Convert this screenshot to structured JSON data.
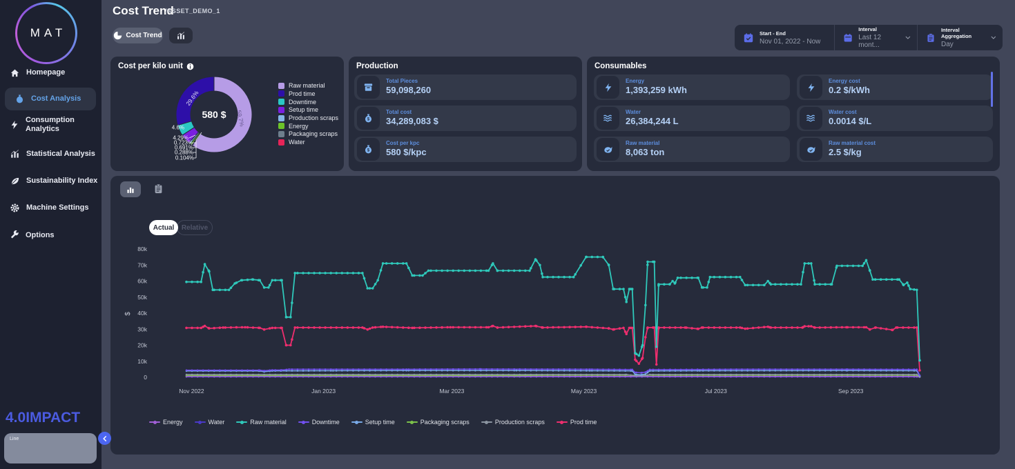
{
  "sidebar": {
    "logo_text": "MAT",
    "items": [
      {
        "label": "Homepage",
        "icon": "home"
      },
      {
        "label": "Cost Analysis",
        "icon": "money-bag",
        "active": true
      },
      {
        "label": "Consumption Analytics",
        "icon": "bolt"
      },
      {
        "label": "Statistical Analysis",
        "icon": "bar-chart"
      },
      {
        "label": "Sustainability Index",
        "icon": "leaf"
      },
      {
        "label": "Machine Settings",
        "icon": "gear"
      },
      {
        "label": "Options",
        "icon": "wrench"
      }
    ],
    "footer_logo": "4.0IMPACT",
    "line_panel_label": "Line"
  },
  "header": {
    "title": "Cost Trend",
    "breadcrumb": "/ASSET_DEMO_1",
    "pie_button_label": "Cost Trend",
    "controls": [
      {
        "label": "Start - End",
        "value": "Nov 01, 2022 - Now",
        "icon": "calendar-check-icon"
      },
      {
        "label": "Interval",
        "value": "Last 12 mont...",
        "icon": "calendar-icon"
      },
      {
        "label": "Interval Aggregation",
        "value": "Day",
        "icon": "clipboard-icon"
      }
    ]
  },
  "cost_per_kilo": {
    "title": "Cost per kilo unit",
    "center_value": "580 $"
  },
  "production": {
    "title": "Production",
    "stats": [
      {
        "label": "Total Pieces",
        "value": "59,098,260",
        "icon": "box-icon"
      },
      {
        "label": "Total cost",
        "value": "34,289,083 $",
        "icon": "money-bag-icon"
      },
      {
        "label": "Cost per kpc",
        "value": "580 $/kpc",
        "icon": "money-bag-icon"
      }
    ]
  },
  "consumables": {
    "title": "Consumables",
    "stats_left": [
      {
        "label": "Energy",
        "value": "1,393,259 kWh",
        "icon": "bolt-icon"
      },
      {
        "label": "Water",
        "value": "26,384,244 L",
        "icon": "waves-icon"
      },
      {
        "label": "Raw material",
        "value": "8,063 ton",
        "icon": "material-icon"
      }
    ],
    "stats_right": [
      {
        "label": "Energy cost",
        "value": "0.2 $/kWh",
        "icon": "bolt-icon"
      },
      {
        "label": "Water cost",
        "value": "0.0014 $/L",
        "icon": "waves-icon"
      },
      {
        "label": "Raw material cost",
        "value": "2.5 $/kg",
        "icon": "material-icon"
      }
    ]
  },
  "trend": {
    "tabs": [
      {
        "label": "Actual",
        "active": true
      },
      {
        "label": "Relative",
        "active": false
      }
    ]
  },
  "chart_data": [
    {
      "type": "pie",
      "title": "Cost per kilo unit",
      "center_label": "580 $",
      "slices": [
        {
          "name": "Raw material",
          "pct": 59.7,
          "label": "59.7%",
          "color": "#b69ce6"
        },
        {
          "name": "Water",
          "pct": 0.104,
          "label": "0.104%",
          "color": "#e62458"
        },
        {
          "name": "Packaging scraps",
          "pct": 0.288,
          "label": "0.288%",
          "color": "#6e7f8d"
        },
        {
          "name": "Energy",
          "pct": 0.691,
          "label": "0.691%",
          "color": "#6cc229"
        },
        {
          "name": "Production scraps",
          "pct": 0.723,
          "label": "0.723%",
          "color": "#85b6e8"
        },
        {
          "name": "Setup time",
          "pct": 4.29,
          "label": "4.29%",
          "color": "#7a1fe0"
        },
        {
          "name": "Downtime",
          "pct": 4.6,
          "label": "4.6%",
          "color": "#2bc8c4"
        },
        {
          "name": "Prod time",
          "pct": 29.6,
          "label": "29.6%",
          "color": "#2d0fa8"
        }
      ],
      "legend": [
        {
          "name": "Raw material",
          "color": "#b69ce6"
        },
        {
          "name": "Prod time",
          "color": "#2d0fa8"
        },
        {
          "name": "Downtime",
          "color": "#2bc8c4"
        },
        {
          "name": "Setup time",
          "color": "#7a1fe0"
        },
        {
          "name": "Production scraps",
          "color": "#85b6e8"
        },
        {
          "name": "Energy",
          "color": "#6cc229"
        },
        {
          "name": "Packaging scraps",
          "color": "#6e7f8d"
        },
        {
          "name": "Water",
          "color": "#e62458"
        }
      ],
      "legend_position": "right"
    },
    {
      "type": "line",
      "ylabel": "$",
      "y_unit": "thousands of $",
      "ylim": [
        0,
        80
      ],
      "yticks": [
        "0",
        "10k",
        "20k",
        "30k",
        "40k",
        "50k",
        "60k",
        "70k",
        "80k"
      ],
      "xticks": [
        {
          "label": "Nov 2022",
          "f": 0.007
        },
        {
          "label": "Jan 2023",
          "f": 0.187
        },
        {
          "label": "Mar 2023",
          "f": 0.362
        },
        {
          "label": "May 2023",
          "f": 0.542
        },
        {
          "label": "Jul 2023",
          "f": 0.722
        },
        {
          "label": "Sep 2023",
          "f": 0.906
        }
      ],
      "grid": false,
      "legend_position": "bottom",
      "legend": [
        {
          "name": "Energy",
          "color": "#a15fd6"
        },
        {
          "name": "Water",
          "color": "#4a39c8"
        },
        {
          "name": "Raw material",
          "color": "#2fc9bb"
        },
        {
          "name": "Downtime",
          "color": "#7250f0"
        },
        {
          "name": "Setup time",
          "color": "#79aae8"
        },
        {
          "name": "Packaging scraps",
          "color": "#7cc24a"
        },
        {
          "name": "Production scraps",
          "color": "#8b95a1"
        },
        {
          "name": "Prod time",
          "color": "#ee2e6e"
        }
      ],
      "series": [
        {
          "name": "Water",
          "color": "#4a39c8",
          "points": [
            [
              0,
              0.25
            ],
            [
              0.996,
              0.25
            ],
            [
              1,
              0.1
            ]
          ]
        },
        {
          "name": "Energy",
          "color": "#a15fd6",
          "points": [
            [
              0,
              0.5
            ],
            [
              0.996,
              0.5
            ],
            [
              1,
              0.2
            ]
          ]
        },
        {
          "name": "Packaging scraps",
          "color": "#7cc24a",
          "points": [
            [
              0,
              1.1
            ],
            [
              0.45,
              1.1
            ],
            [
              0.5,
              1.3
            ],
            [
              0.996,
              1.3
            ],
            [
              1,
              0.4
            ]
          ]
        },
        {
          "name": "Production scraps",
          "color": "#8b95a1",
          "points": [
            [
              0,
              1.7
            ],
            [
              0.6,
              1.7
            ],
            [
              0.612,
              1
            ],
            [
              0.626,
              1
            ],
            [
              0.632,
              1.7
            ],
            [
              0.996,
              1.7
            ],
            [
              1,
              0.5
            ]
          ]
        },
        {
          "name": "Setup time",
          "color": "#79aae8",
          "points": [
            [
              0,
              3.9
            ],
            [
              0.1,
              3.9
            ],
            [
              0.106,
              3.5
            ],
            [
              0.117,
              4
            ],
            [
              0.2,
              4.1
            ],
            [
              0.3,
              4.2
            ],
            [
              0.45,
              4.2
            ],
            [
              0.55,
              4.1
            ],
            [
              0.608,
              4
            ],
            [
              0.612,
              1.8
            ],
            [
              0.62,
              1.5
            ],
            [
              0.626,
              2
            ],
            [
              0.632,
              4
            ],
            [
              0.7,
              4.1
            ],
            [
              0.9,
              4.2
            ],
            [
              0.996,
              4.1
            ],
            [
              1,
              0.8
            ]
          ]
        },
        {
          "name": "Downtime",
          "color": "#7250f0",
          "points": [
            [
              0,
              4.4
            ],
            [
              0.1,
              4.4
            ],
            [
              0.106,
              4.1
            ],
            [
              0.117,
              4.5
            ],
            [
              0.13,
              4.5
            ],
            [
              0.14,
              5
            ],
            [
              0.3,
              5
            ],
            [
              0.4,
              5.1
            ],
            [
              0.55,
              5
            ],
            [
              0.608,
              4.8
            ],
            [
              0.612,
              3
            ],
            [
              0.62,
              2.8
            ],
            [
              0.626,
              3.2
            ],
            [
              0.632,
              4.8
            ],
            [
              0.66,
              4.8
            ],
            [
              0.75,
              5
            ],
            [
              0.9,
              5
            ],
            [
              0.996,
              4.9
            ],
            [
              1,
              1.2
            ]
          ]
        },
        {
          "name": "Prod time",
          "color": "#ee2e6e",
          "points": [
            [
              0,
              30.8
            ],
            [
              0.02,
              30.8
            ],
            [
              0.025,
              32
            ],
            [
              0.031,
              30.5
            ],
            [
              0.05,
              31
            ],
            [
              0.08,
              31.2
            ],
            [
              0.1,
              30.8
            ],
            [
              0.106,
              29.8
            ],
            [
              0.117,
              30.8
            ],
            [
              0.13,
              30.8
            ],
            [
              0.136,
              20
            ],
            [
              0.142,
              20
            ],
            [
              0.148,
              31
            ],
            [
              0.24,
              31
            ],
            [
              0.247,
              29.8
            ],
            [
              0.254,
              31
            ],
            [
              0.268,
              31.5
            ],
            [
              0.308,
              30.8
            ],
            [
              0.36,
              31.2
            ],
            [
              0.412,
              31.2
            ],
            [
              0.418,
              32
            ],
            [
              0.424,
              31
            ],
            [
              0.476,
              32
            ],
            [
              0.486,
              31
            ],
            [
              0.545,
              31.5
            ],
            [
              0.576,
              30.5
            ],
            [
              0.582,
              29.8
            ],
            [
              0.596,
              30.8
            ],
            [
              0.6,
              27
            ],
            [
              0.604,
              30.8
            ],
            [
              0.608,
              30.8
            ],
            [
              0.612,
              11
            ],
            [
              0.617,
              8.5
            ],
            [
              0.622,
              12
            ],
            [
              0.626,
              25
            ],
            [
              0.629,
              31
            ],
            [
              0.638,
              31
            ],
            [
              0.641,
              8
            ],
            [
              0.644,
              31
            ],
            [
              0.68,
              31
            ],
            [
              0.698,
              30.2
            ],
            [
              0.703,
              31
            ],
            [
              0.755,
              31
            ],
            [
              0.762,
              30.3
            ],
            [
              0.793,
              31.5
            ],
            [
              0.797,
              31
            ],
            [
              0.84,
              31
            ],
            [
              0.843,
              31.8
            ],
            [
              0.852,
              31.8
            ],
            [
              0.857,
              31
            ],
            [
              0.9,
              31.2
            ],
            [
              0.927,
              31.2
            ],
            [
              0.932,
              29.8
            ],
            [
              0.94,
              31
            ],
            [
              0.963,
              29.5
            ],
            [
              0.968,
              31
            ],
            [
              0.996,
              31
            ],
            [
              1,
              4.3
            ]
          ]
        },
        {
          "name": "Raw material",
          "color": "#2fc9bb",
          "points": [
            [
              0,
              59.5
            ],
            [
              0.02,
              59.5
            ],
            [
              0.025,
              70.5
            ],
            [
              0.031,
              66
            ],
            [
              0.036,
              54.5
            ],
            [
              0.058,
              54.5
            ],
            [
              0.066,
              58.5
            ],
            [
              0.075,
              60.5
            ],
            [
              0.09,
              61
            ],
            [
              0.1,
              60.5
            ],
            [
              0.106,
              56
            ],
            [
              0.112,
              56
            ],
            [
              0.117,
              60.5
            ],
            [
              0.13,
              60.5
            ],
            [
              0.136,
              37.5
            ],
            [
              0.142,
              37.5
            ],
            [
              0.148,
              65
            ],
            [
              0.24,
              65
            ],
            [
              0.247,
              55.5
            ],
            [
              0.254,
              55.5
            ],
            [
              0.261,
              60.5
            ],
            [
              0.268,
              71
            ],
            [
              0.3,
              71
            ],
            [
              0.308,
              63.5
            ],
            [
              0.322,
              63.5
            ],
            [
              0.33,
              66.5
            ],
            [
              0.412,
              66.5
            ],
            [
              0.418,
              71
            ],
            [
              0.424,
              66.5
            ],
            [
              0.468,
              66.5
            ],
            [
              0.476,
              73.5
            ],
            [
              0.482,
              70
            ],
            [
              0.486,
              62.5
            ],
            [
              0.528,
              62.5
            ],
            [
              0.545,
              75
            ],
            [
              0.568,
              75
            ],
            [
              0.576,
              70
            ],
            [
              0.582,
              55
            ],
            [
              0.596,
              55
            ],
            [
              0.6,
              47
            ],
            [
              0.604,
              55
            ],
            [
              0.608,
              55
            ],
            [
              0.612,
              15
            ],
            [
              0.617,
              13.5
            ],
            [
              0.622,
              20
            ],
            [
              0.626,
              45
            ],
            [
              0.629,
              72
            ],
            [
              0.638,
              72
            ],
            [
              0.641,
              19
            ],
            [
              0.644,
              58
            ],
            [
              0.659,
              58
            ],
            [
              0.663,
              60
            ],
            [
              0.666,
              58.5
            ],
            [
              0.67,
              62
            ],
            [
              0.698,
              62
            ],
            [
              0.703,
              56
            ],
            [
              0.71,
              56
            ],
            [
              0.714,
              62.5
            ],
            [
              0.755,
              62.5
            ],
            [
              0.762,
              57.5
            ],
            [
              0.788,
              57.5
            ],
            [
              0.793,
              60
            ],
            [
              0.797,
              58
            ],
            [
              0.838,
              58
            ],
            [
              0.843,
              71
            ],
            [
              0.852,
              71
            ],
            [
              0.857,
              58
            ],
            [
              0.88,
              58
            ],
            [
              0.887,
              69.5
            ],
            [
              0.922,
              69.5
            ],
            [
              0.927,
              73
            ],
            [
              0.932,
              66.5
            ],
            [
              0.936,
              61
            ],
            [
              0.972,
              61
            ],
            [
              0.978,
              57.5
            ],
            [
              0.983,
              59
            ],
            [
              0.987,
              55
            ],
            [
              0.996,
              54.5
            ],
            [
              1,
              10.5
            ]
          ]
        }
      ]
    }
  ]
}
